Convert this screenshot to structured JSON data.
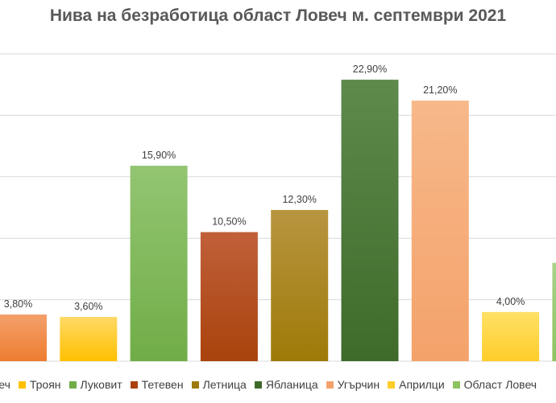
{
  "chart_data": {
    "type": "bar",
    "title": "Нива на безработица област Ловеч м. септември 2021",
    "xlabel": "",
    "ylabel": "",
    "ylim": [
      0,
      25
    ],
    "grid": true,
    "legend_placement": "bottom",
    "categories": [
      "Ловеч",
      "Троян",
      "Луковит",
      "Тетевен",
      "Летница",
      "Ябланица",
      "Угърчин",
      "Априлци",
      "Област Ловеч"
    ],
    "values": [
      3.8,
      3.6,
      15.9,
      10.5,
      12.3,
      22.9,
      21.2,
      4.0,
      8.0
    ],
    "data_labels": [
      "3,80%",
      "3,60%",
      "15,90%",
      "10,50%",
      "12,30%",
      "22,90%",
      "21,20%",
      "4,00%",
      ""
    ],
    "legend_labels": [
      "Ловеч",
      "Троян",
      "Луковит",
      "Тетевен",
      "Летница",
      "Ябланица",
      "Угърчин",
      "Априлци",
      "Област Ловеч"
    ],
    "colors": [
      "#ED7D31",
      "#FFC000",
      "#70AD47",
      "#A9420C",
      "#9E7A08",
      "#3E6A2A",
      "#F4A26A",
      "#FFCD2A",
      "#8DC35F"
    ],
    "colors_light": [
      "#F4A06A",
      "#FFD966",
      "#93C572",
      "#C0603A",
      "#B89540",
      "#5E8A4C",
      "#F7B88A",
      "#FFE066",
      "#A9D38A"
    ]
  }
}
